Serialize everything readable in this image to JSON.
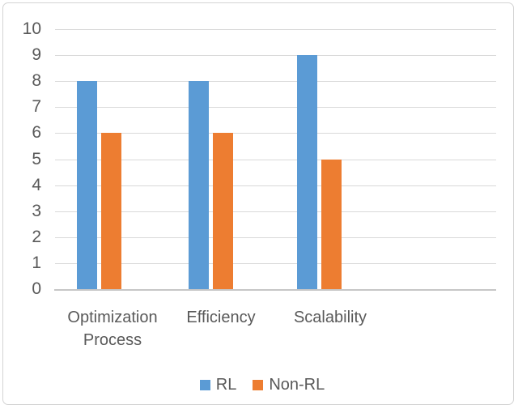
{
  "chart_data": {
    "type": "bar",
    "title": "",
    "xlabel": "",
    "ylabel": "",
    "categories": [
      "Optimization Process",
      "Efficiency",
      "Scalability"
    ],
    "series": [
      {
        "name": "RL",
        "color": "#5B9BD5",
        "values": [
          8,
          8,
          9
        ]
      },
      {
        "name": "Non-RL",
        "color": "#ED7D31",
        "values": [
          6,
          6,
          5
        ]
      }
    ],
    "ylim": [
      0,
      10
    ],
    "ytick_step": 1,
    "yticks": [
      "0",
      "1",
      "2",
      "3",
      "4",
      "5",
      "6",
      "7",
      "8",
      "9",
      "10"
    ],
    "grid": true,
    "legend_position": "bottom",
    "colors": {
      "axis_text": "#595959",
      "gridline": "#D9D9D9",
      "axis_line": "#C6C6C6",
      "frame_border": "#D4D4D4",
      "background": "#FFFFFF"
    }
  }
}
